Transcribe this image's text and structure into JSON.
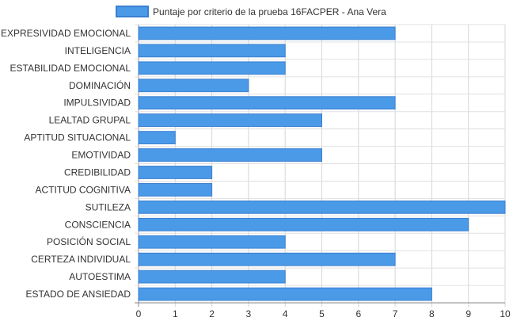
{
  "chart_data": {
    "type": "bar",
    "orientation": "horizontal",
    "categories": [
      "EXPRESIVIDAD EMOCIONAL",
      "INTELIGENCIA",
      "ESTABILIDAD EMOCIONAL",
      "DOMINACIÓN",
      "IMPULSIVIDAD",
      "LEALTAD GRUPAL",
      "APTITUD SITUACIONAL",
      "EMOTIVIDAD",
      "CREDIBILIDAD",
      "ACTITUD COGNITIVA",
      "SUTILEZA",
      "CONSCIENCIA",
      "POSICIÓN SOCIAL",
      "CERTEZA INDIVIDUAL",
      "AUTOESTIMA",
      "ESTADO DE ANSIEDAD"
    ],
    "series": [
      {
        "name": "Puntaje por criterio de la prueba 16FACPER - Ana Vera",
        "values": [
          7,
          4,
          4,
          3,
          7,
          5,
          1,
          5,
          2,
          2,
          10,
          9,
          4,
          7,
          4,
          8
        ],
        "color": "#4a9ae8",
        "border_color": "#3a7fd0"
      }
    ],
    "xlim": [
      0,
      10
    ],
    "x_ticks": [
      "0",
      "1",
      "2",
      "3",
      "4",
      "5",
      "6",
      "7",
      "8",
      "9",
      "10"
    ],
    "grid": true,
    "legend_position": "top-center",
    "title": "",
    "xlabel": "",
    "ylabel": ""
  }
}
